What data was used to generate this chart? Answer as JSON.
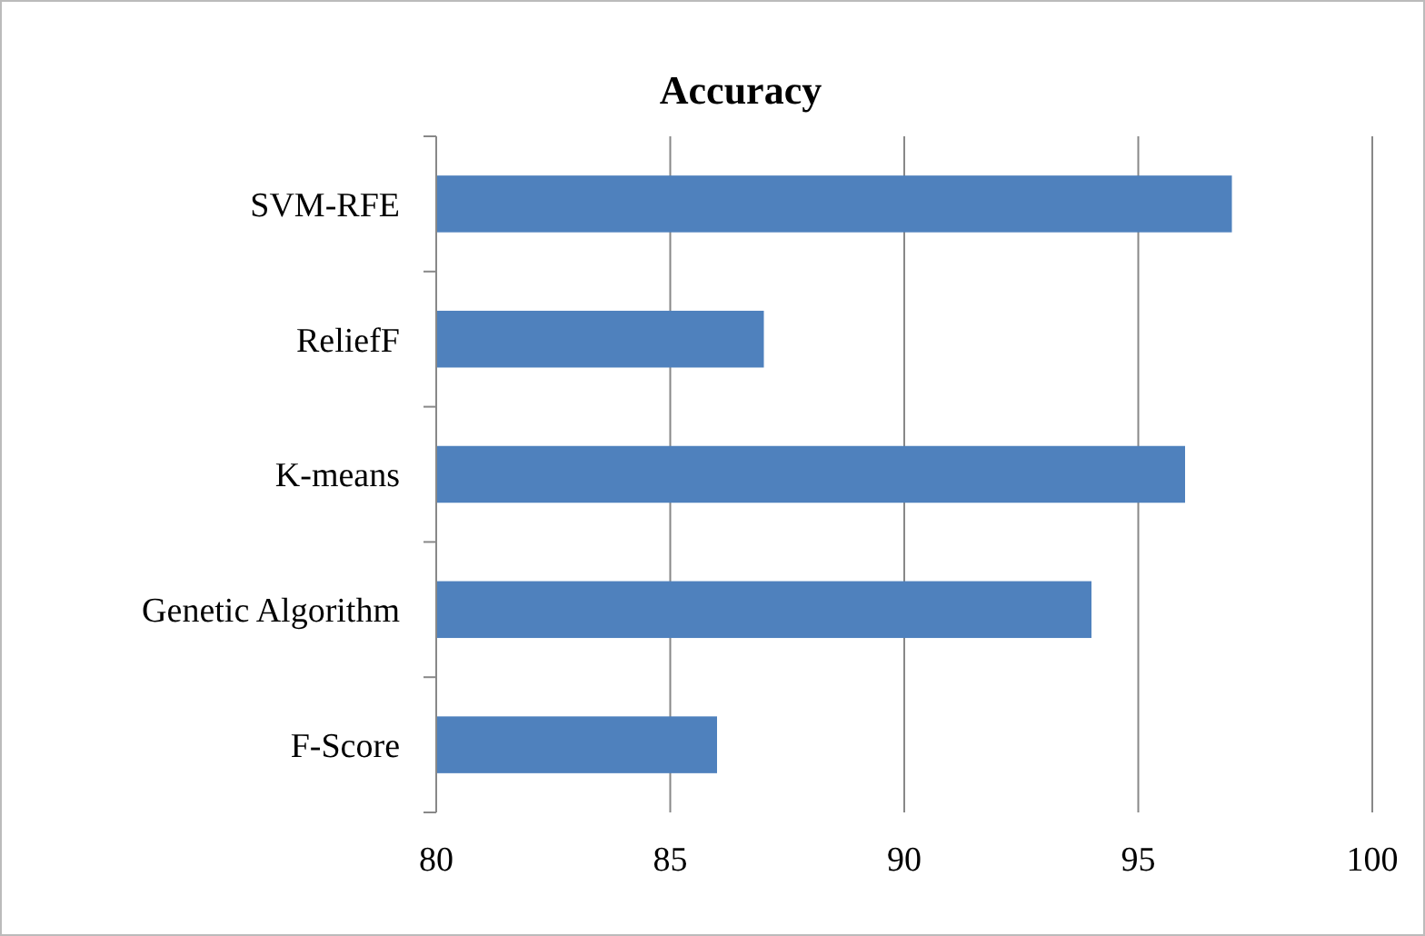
{
  "chart_data": {
    "type": "bar",
    "orientation": "horizontal",
    "title": "Accuracy",
    "categories": [
      "SVM-RFE",
      "ReliefF",
      "K-means",
      "Genetic Algorithm",
      "F-Score"
    ],
    "values": [
      97,
      87,
      96,
      94,
      86
    ],
    "color": "#4f81bd",
    "xlim": [
      80,
      100
    ],
    "xticks": [
      80,
      85,
      90,
      95,
      100
    ],
    "grid": "x"
  }
}
